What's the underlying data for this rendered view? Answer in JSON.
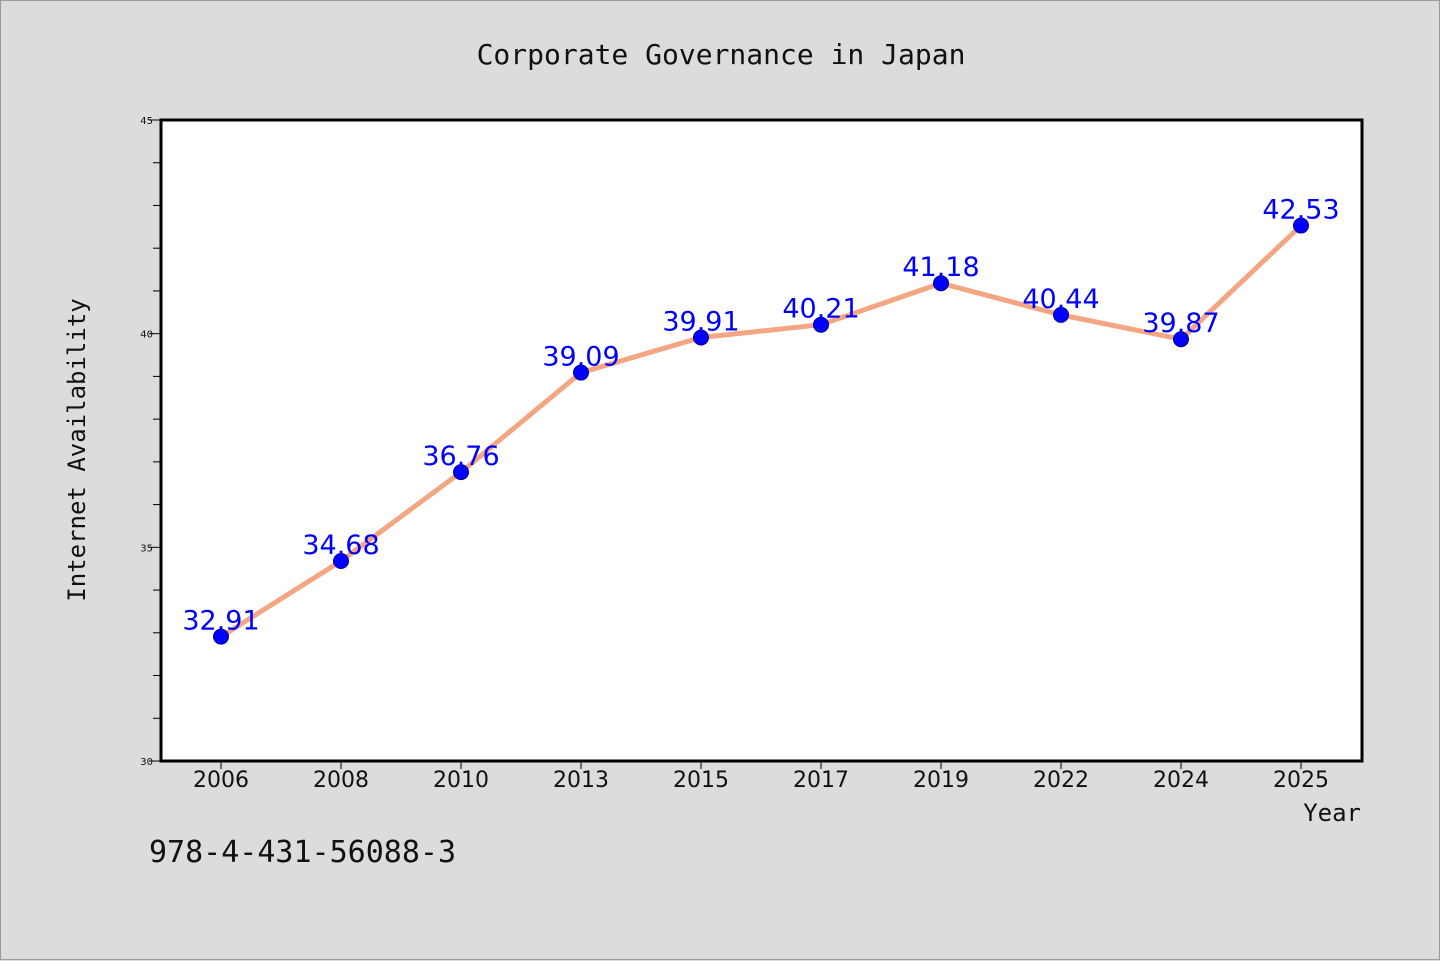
{
  "chart_data": {
    "type": "line",
    "title": "Corporate Governance in Japan",
    "xlabel": "Year",
    "ylabel": "Internet Availability",
    "categories": [
      "2006",
      "2008",
      "2010",
      "2013",
      "2015",
      "2017",
      "2019",
      "2022",
      "2024",
      "2025"
    ],
    "series": [
      {
        "values": [
          32.91,
          34.68,
          36.76,
          39.09,
          39.91,
          40.21,
          41.18,
          40.44,
          39.87,
          42.53
        ],
        "labels": [
          "32.91",
          "34.68",
          "36.76",
          "39.09",
          "39.91",
          "40.21",
          "41.18",
          "40.44",
          "39.87",
          "42.53"
        ]
      }
    ],
    "ylim": [
      30,
      45
    ],
    "yticks": [
      "30",
      "35",
      "40",
      "45"
    ],
    "grid": false,
    "legend": "none",
    "colors": {
      "line": "#f4a582",
      "marker": "#0000ff",
      "labels": "#0000ff",
      "background": "#dcdcdc",
      "plot_background": "#ffffff"
    }
  },
  "footer": {
    "isbn": "978-4-431-56088-3"
  }
}
